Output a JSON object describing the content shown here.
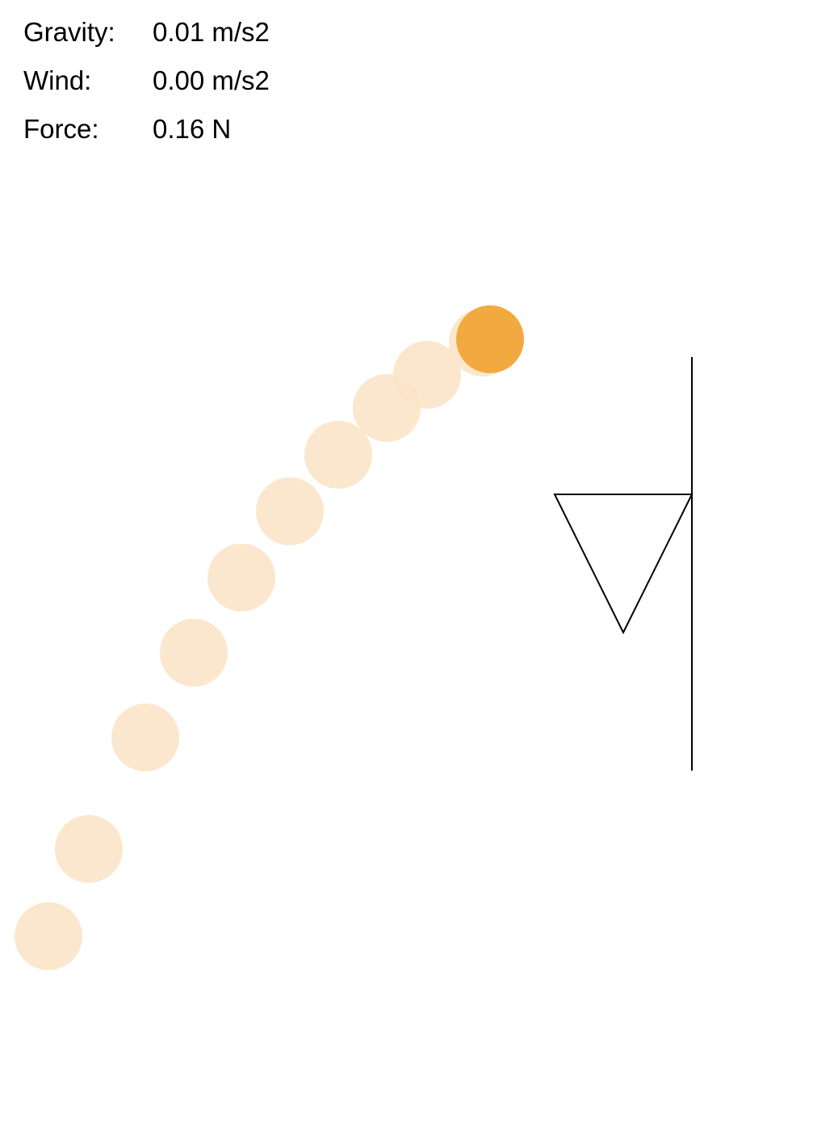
{
  "stats": [
    {
      "label": "Gravity:",
      "value": "0.01 m/s2"
    },
    {
      "label": "Wind:",
      "value": "0.00 m/s2"
    },
    {
      "label": "Force:",
      "value": "0.16 N"
    }
  ],
  "colors": {
    "ball": "#f2aa40",
    "ball_trail": "#fae3c6",
    "hoop_line": "#000000"
  },
  "icons": {
    "ball": "basketball-ball-icon",
    "hoop": "hoop-net-icon"
  }
}
